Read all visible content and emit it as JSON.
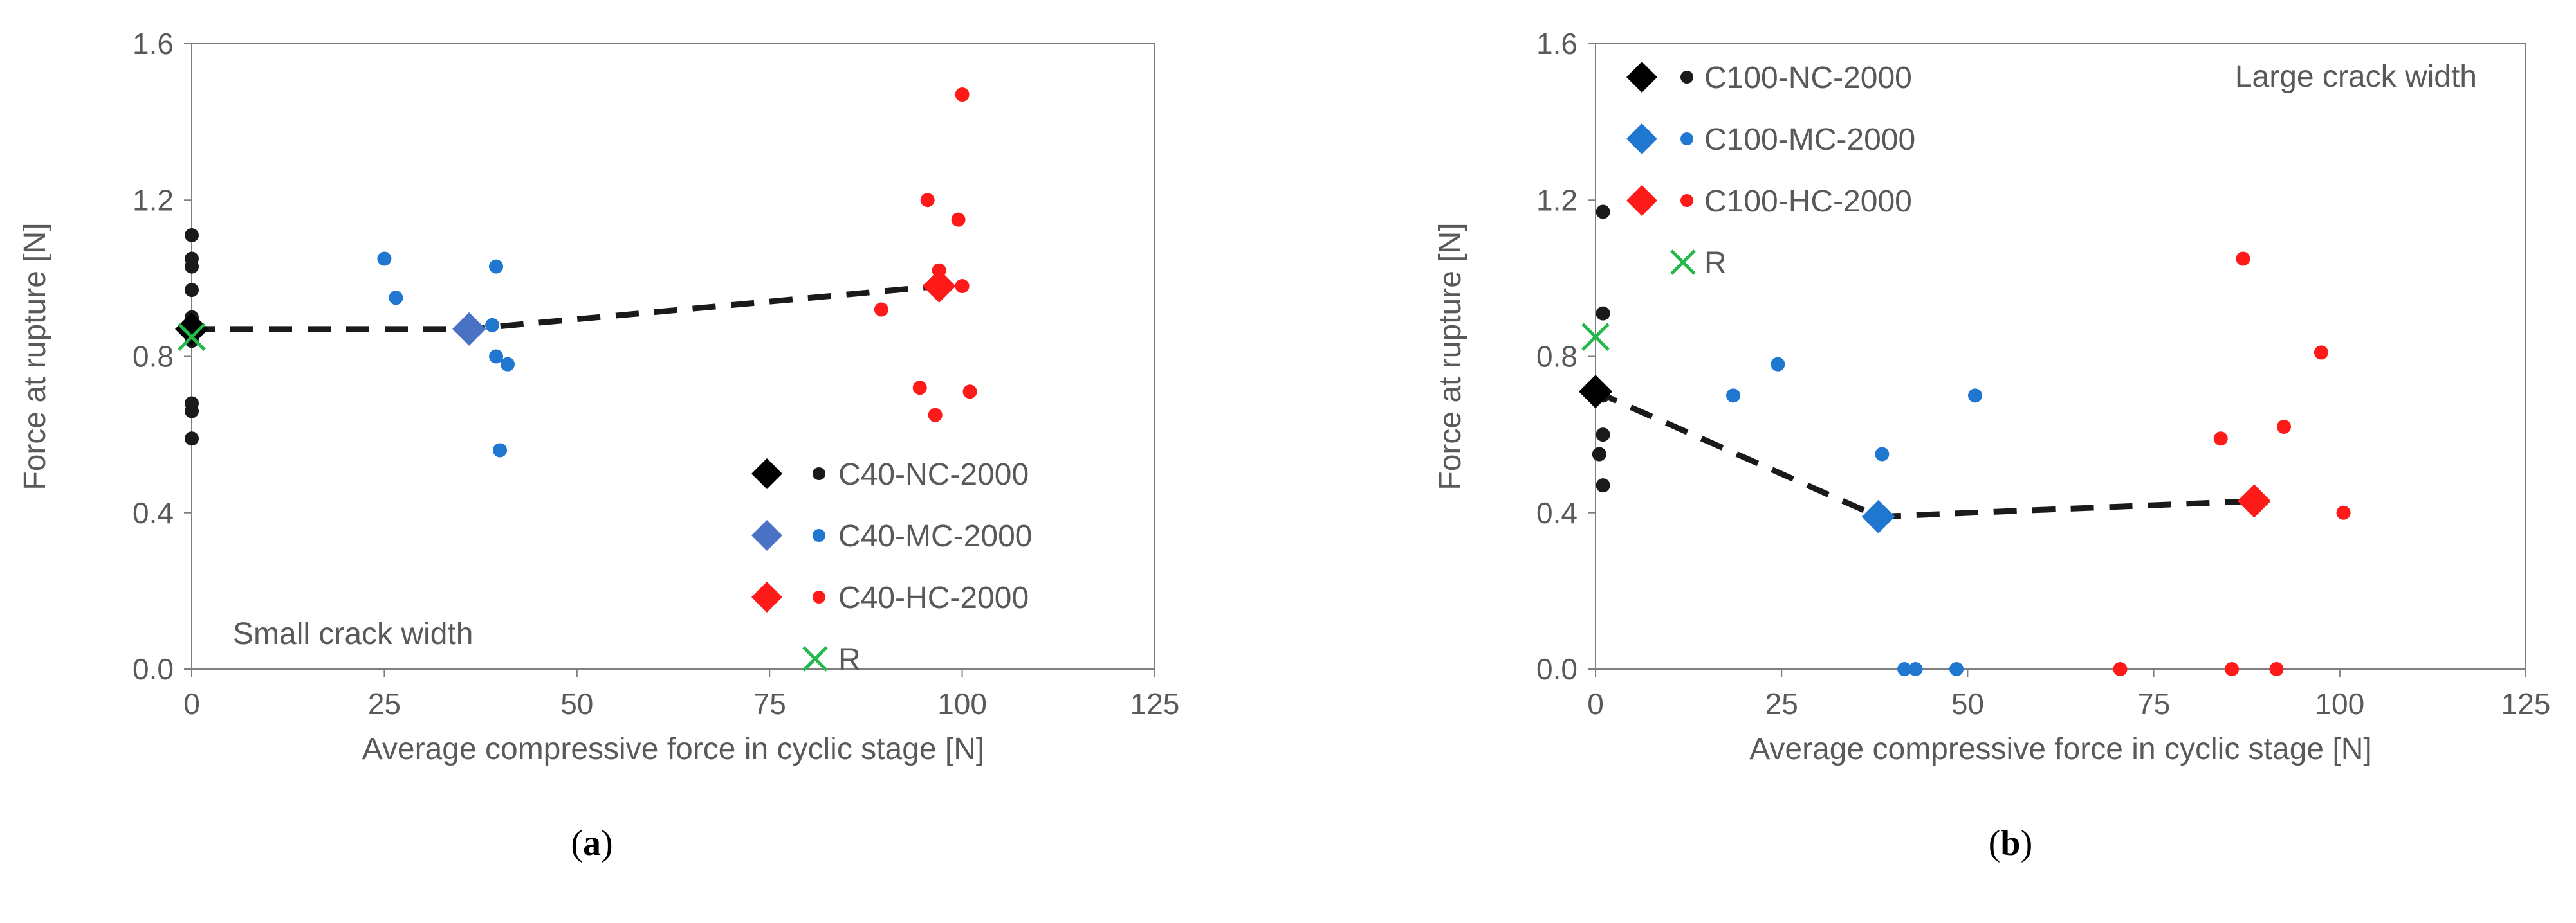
{
  "chart_data": [
    {
      "type": "scatter",
      "caption_open": "(",
      "caption_letter": "a",
      "caption_close": ")",
      "annotation": "Small crack width",
      "annotation_position": "bottom-left",
      "legend_position": "bottom-right",
      "xlabel": "Average compressive force in cyclic stage [N]",
      "ylabel": "Force at rupture [N]",
      "xlim": [
        0,
        125
      ],
      "ylim": [
        0.0,
        1.6
      ],
      "xticks": [
        0,
        25,
        50,
        75,
        100,
        125
      ],
      "xtick_labels": [
        "0",
        "25",
        "50",
        "75",
        "100",
        "125"
      ],
      "yticks": [
        0.0,
        0.4,
        0.8,
        1.2,
        1.6
      ],
      "ytick_labels": [
        "0.0",
        "0.4",
        "0.8",
        "1.2",
        "1.6"
      ],
      "series": [
        {
          "name": "C40-NC-2000",
          "color": "#1a1a1a",
          "mean_color": "#000000",
          "mean": {
            "x": 0,
            "y": 0.87
          },
          "points": [
            {
              "x": 0,
              "y": 1.11
            },
            {
              "x": 0,
              "y": 1.05
            },
            {
              "x": 0,
              "y": 1.03
            },
            {
              "x": 0,
              "y": 0.97
            },
            {
              "x": 0,
              "y": 0.9
            },
            {
              "x": 0,
              "y": 0.88
            },
            {
              "x": 0,
              "y": 0.86
            },
            {
              "x": 0,
              "y": 0.84
            },
            {
              "x": 0,
              "y": 0.68
            },
            {
              "x": 0,
              "y": 0.66
            },
            {
              "x": 0,
              "y": 0.59
            }
          ]
        },
        {
          "name": "C40-MC-2000",
          "color": "#1f77d0",
          "mean_color": "#4a72c4",
          "mean": {
            "x": 36,
            "y": 0.87
          },
          "points": [
            {
              "x": 25,
              "y": 1.05
            },
            {
              "x": 26.5,
              "y": 0.95
            },
            {
              "x": 39.5,
              "y": 1.03
            },
            {
              "x": 39,
              "y": 0.88
            },
            {
              "x": 39.5,
              "y": 0.8
            },
            {
              "x": 41,
              "y": 0.78
            },
            {
              "x": 40,
              "y": 0.56
            }
          ]
        },
        {
          "name": "C40-HC-2000",
          "color": "#ff1a1a",
          "mean_color": "#ff1a1a",
          "mean": {
            "x": 97,
            "y": 0.98
          },
          "points": [
            {
              "x": 100,
              "y": 1.47
            },
            {
              "x": 95.5,
              "y": 1.2
            },
            {
              "x": 99.5,
              "y": 1.15
            },
            {
              "x": 97,
              "y": 1.02
            },
            {
              "x": 100,
              "y": 0.98
            },
            {
              "x": 89.5,
              "y": 0.92
            },
            {
              "x": 94.5,
              "y": 0.72
            },
            {
              "x": 101,
              "y": 0.71
            },
            {
              "x": 96.5,
              "y": 0.65
            }
          ]
        }
      ],
      "trend_line": {
        "x": [
          0,
          36,
          97
        ],
        "y": [
          0.87,
          0.87,
          0.98
        ]
      },
      "reference": {
        "name": "R",
        "color": "#22b84a",
        "x": 0,
        "y": 0.85
      }
    },
    {
      "type": "scatter",
      "caption_open": "(",
      "caption_letter": "b",
      "caption_close": ")",
      "annotation": "Large crack width",
      "annotation_position": "top-right",
      "legend_position": "top-left",
      "xlabel": "Average compressive force in cyclic stage [N]",
      "ylabel": "Force at rupture [N]",
      "xlim": [
        0,
        125
      ],
      "ylim": [
        0.0,
        1.6
      ],
      "xticks": [
        0,
        25,
        50,
        75,
        100,
        125
      ],
      "xtick_labels": [
        "0",
        "25",
        "50",
        "75",
        "100",
        "125"
      ],
      "yticks": [
        0.0,
        0.4,
        0.8,
        1.2,
        1.6
      ],
      "ytick_labels": [
        "0.0",
        "0.4",
        "0.8",
        "1.2",
        "1.6"
      ],
      "series": [
        {
          "name": "C100-NC-2000",
          "color": "#1a1a1a",
          "mean_color": "#000000",
          "mean": {
            "x": 0,
            "y": 0.71
          },
          "points": [
            {
              "x": 1,
              "y": 1.17
            },
            {
              "x": 1,
              "y": 0.91
            },
            {
              "x": 0,
              "y": 0.72
            },
            {
              "x": 1,
              "y": 0.7
            },
            {
              "x": 1,
              "y": 0.6
            },
            {
              "x": 0.5,
              "y": 0.55
            },
            {
              "x": 1,
              "y": 0.47
            }
          ]
        },
        {
          "name": "C100-MC-2000",
          "color": "#1f77d0",
          "mean_color": "#1f77d0",
          "mean": {
            "x": 38,
            "y": 0.39
          },
          "points": [
            {
              "x": 18.5,
              "y": 0.7
            },
            {
              "x": 24.5,
              "y": 0.78
            },
            {
              "x": 51,
              "y": 0.7
            },
            {
              "x": 38.5,
              "y": 0.55
            },
            {
              "x": 41.5,
              "y": 0.0
            },
            {
              "x": 43,
              "y": 0.0
            },
            {
              "x": 48.5,
              "y": 0.0
            }
          ]
        },
        {
          "name": "C100-HC-2000",
          "color": "#ff1a1a",
          "mean_color": "#ff1a1a",
          "mean": {
            "x": 88.5,
            "y": 0.43
          },
          "points": [
            {
              "x": 87,
              "y": 1.05
            },
            {
              "x": 97.5,
              "y": 0.81
            },
            {
              "x": 92.5,
              "y": 0.62
            },
            {
              "x": 84,
              "y": 0.59
            },
            {
              "x": 100.5,
              "y": 0.4
            },
            {
              "x": 70.5,
              "y": 0.0
            },
            {
              "x": 85.5,
              "y": 0.0
            },
            {
              "x": 91.5,
              "y": 0.0
            }
          ]
        }
      ],
      "trend_line": {
        "x": [
          0,
          38,
          88.5
        ],
        "y": [
          0.71,
          0.39,
          0.43
        ]
      },
      "reference": {
        "name": "R",
        "color": "#22b84a",
        "x": 0,
        "y": 0.85
      }
    }
  ]
}
